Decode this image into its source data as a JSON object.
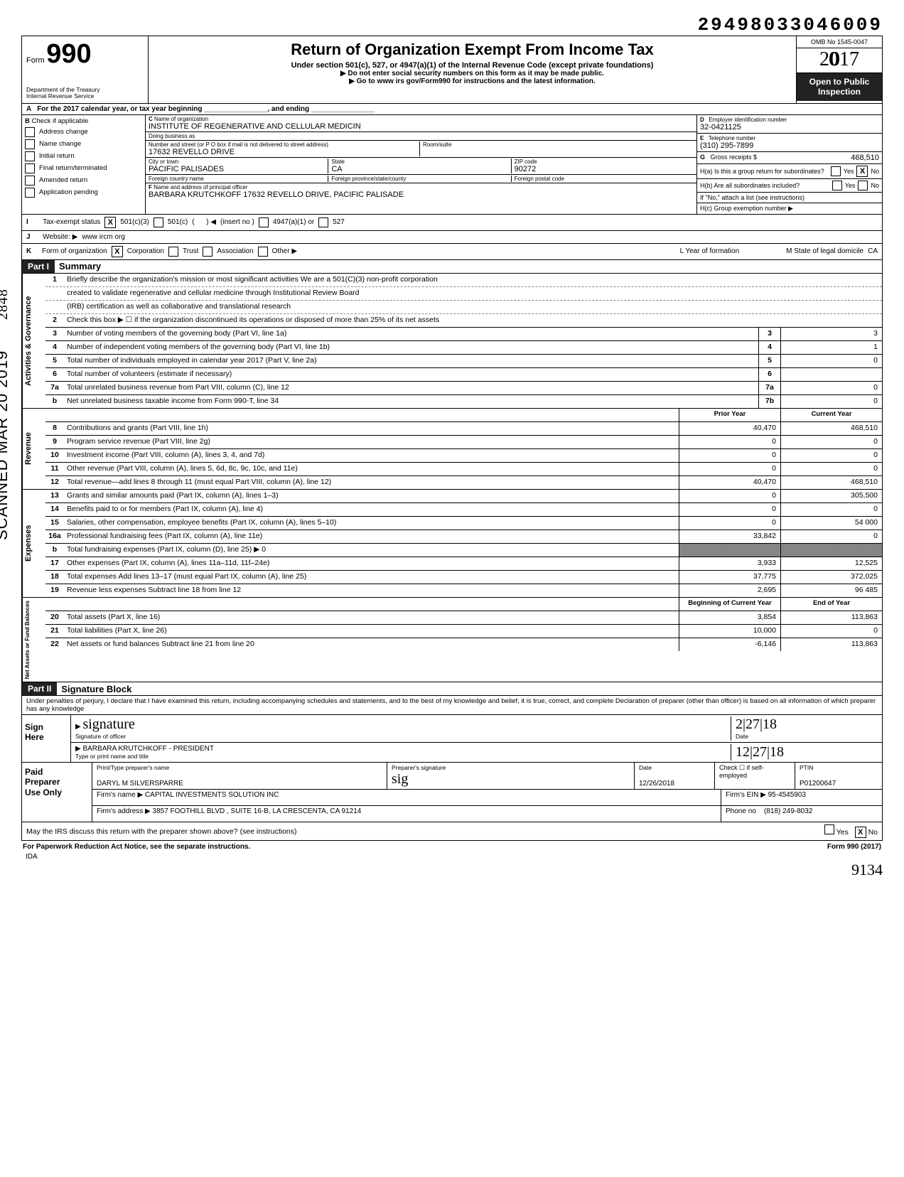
{
  "top_id": "29498033046009",
  "form": {
    "word": "Form",
    "number": "990",
    "dept1": "Department of the Treasury",
    "dept2": "Internal Revenue Service",
    "title": "Return of Organization Exempt From Income Tax",
    "sub1": "Under section 501(c), 527, or 4947(a)(1) of the Internal Revenue Code (except private foundations)",
    "sub2": "Do not enter social security numbers on this form as it may be made public.",
    "sub3": "Go to www irs gov/Form990 for instructions and the latest information.",
    "omb": "OMB No 1545-0047",
    "year": "2017",
    "open1": "Open to Public",
    "open2": "Inspection"
  },
  "rowA": "For the 2017 calendar year, or tax year beginning ________________, and ending ________________",
  "colB": {
    "hdr": "Check if applicable",
    "items": [
      "Address change",
      "Name change",
      "Initial return",
      "Final return/terminated",
      "Amended return",
      "Application pending"
    ]
  },
  "colC": {
    "name_lbl": "Name of organization",
    "name": "INSTITUTE OF REGENERATIVE AND CELLULAR MEDICIN",
    "dba_lbl": "Doing business as",
    "dba": "",
    "street_lbl": "Number and street (or P O box if mail is not delivered to street address)",
    "room_lbl": "Room/suite",
    "street": "17632 REVELLO DRIVE",
    "city_lbl": "City or town",
    "state_lbl": "State",
    "zip_lbl": "ZIP code",
    "city": "PACIFIC PALISADES",
    "state": "CA",
    "zip": "90272",
    "fcountry_lbl": "Foreign country name",
    "fprov_lbl": "Foreign province/state/county",
    "fpost_lbl": "Foreign postal code",
    "officer_lbl": "Name and address of principal officer",
    "officer": "BARBARA KRUTCHKOFF 17632 REVELLO DRIVE, PACIFIC PALISADE"
  },
  "colD": {
    "ein_lbl": "Employer identification number",
    "ein": "32-0421125",
    "tel_lbl": "Telephone number",
    "tel": "(310) 295-7899",
    "gross_lbl": "Gross receipts $",
    "gross": "468,510",
    "ha_lbl": "H(a) Is this a group return for subordinates?",
    "hb_lbl": "H(b) Are all subordinates included?",
    "h_note": "If \"No,\" attach a list (see instructions)",
    "hc_lbl": "H(c) Group exemption number ▶",
    "yes": "Yes",
    "no": "No"
  },
  "lineI": {
    "label": "Tax-exempt status",
    "opt1": "501(c)(3)",
    "opt2": "501(c)",
    "opt2b": "(insert no )",
    "opt3": "4947(a)(1) or",
    "opt4": "527"
  },
  "lineJ": {
    "label": "Website: ▶",
    "val": "www ircm org"
  },
  "lineK": {
    "label": "Form of organization",
    "opts": [
      "Corporation",
      "Trust",
      "Association",
      "Other ▶"
    ],
    "year_lbl": "L Year of formation",
    "state_lbl": "M State of legal domicile",
    "state": "CA"
  },
  "part1": {
    "hdr": "Part I",
    "title": "Summary"
  },
  "summary": {
    "s1_label": "Activities & Governance",
    "s1": [
      {
        "n": "1",
        "t": "Briefly describe the organization's mission or most significant activities      We are a 501(C)(3) non-profit corporation"
      },
      {
        "n": "",
        "t": "created to validate regenerative and cellular medicine through Institutional Review Board"
      },
      {
        "n": "",
        "t": "(IRB) certification as well as collaborative and translational research"
      },
      {
        "n": "2",
        "t": "Check this box  ▶ ☐  if the organization discontinued its operations or disposed of more than 25% of its net assets"
      },
      {
        "n": "3",
        "t": "Number of voting members of the governing body (Part VI, line 1a)",
        "k": "3",
        "v": "3"
      },
      {
        "n": "4",
        "t": "Number of independent voting members of the governing body (Part VI, line 1b)",
        "k": "4",
        "v": "1"
      },
      {
        "n": "5",
        "t": "Total number of individuals employed in calendar year 2017 (Part V, line 2a)",
        "k": "5",
        "v": "0"
      },
      {
        "n": "6",
        "t": "Total number of volunteers (estimate if necessary)",
        "k": "6",
        "v": ""
      },
      {
        "n": "7a",
        "t": "Total unrelated business revenue from Part VIII, column (C), line 12",
        "k": "7a",
        "v": "0"
      },
      {
        "n": "b",
        "t": "Net unrelated business taxable income from Form 990-T, line 34",
        "k": "7b",
        "v": "0"
      }
    ],
    "s2_label": "Revenue",
    "s2_hdr1": "Prior Year",
    "s2_hdr2": "Current Year",
    "s2": [
      {
        "n": "8",
        "t": "Contributions and grants (Part VIII, line 1h)",
        "p": "40,470",
        "c": "468,510"
      },
      {
        "n": "9",
        "t": "Program service revenue (Part VIII, line 2g)",
        "p": "0",
        "c": "0"
      },
      {
        "n": "10",
        "t": "Investment income (Part VIII, column (A), lines 3, 4, and 7d)",
        "p": "0",
        "c": "0"
      },
      {
        "n": "11",
        "t": "Other revenue (Part VIII, column (A), lines 5, 6d, 8c, 9c, 10c, and 11e)",
        "p": "0",
        "c": "0"
      },
      {
        "n": "12",
        "t": "Total revenue—add lines 8 through 11 (must equal Part VIII, column (A), line 12)",
        "p": "40,470",
        "c": "468,510"
      }
    ],
    "s3_label": "Expenses",
    "s3": [
      {
        "n": "13",
        "t": "Grants and similar amounts paid (Part IX, column (A), lines 1–3)",
        "p": "0",
        "c": "305,500"
      },
      {
        "n": "14",
        "t": "Benefits paid to or for members (Part IX, column (A), line 4)",
        "p": "0",
        "c": "0"
      },
      {
        "n": "15",
        "t": "Salaries, other compensation, employee benefits (Part IX, column (A), lines 5–10)",
        "p": "0",
        "c": "54 000"
      },
      {
        "n": "16a",
        "t": "Professional fundraising fees (Part IX, column (A), line 11e)",
        "p": "33,842",
        "c": "0"
      },
      {
        "n": "b",
        "t": "Total fundraising expenses (Part IX, column (D), line 25)  ▶            0",
        "p": "GREY",
        "c": "GREY"
      },
      {
        "n": "17",
        "t": "Other expenses (Part IX, column (A), lines 11a–11d, 11f–24e)",
        "p": "3,933",
        "c": "12,525"
      },
      {
        "n": "18",
        "t": "Total expenses  Add lines 13–17 (must equal Part IX, column (A), line 25)",
        "p": "37,775",
        "c": "372,025"
      },
      {
        "n": "19",
        "t": "Revenue less expenses  Subtract line 18 from line 12",
        "p": "2,695",
        "c": "96 485"
      }
    ],
    "s4_label": "Net Assets or\nFund Balances",
    "s4_hdr1": "Beginning of Current Year",
    "s4_hdr2": "End of Year",
    "s4": [
      {
        "n": "20",
        "t": "Total assets (Part X, line 16)",
        "p": "3,854",
        "c": "113,863"
      },
      {
        "n": "21",
        "t": "Total liabilities (Part X, line 26)",
        "p": "10,000",
        "c": "0"
      },
      {
        "n": "22",
        "t": "Net assets or fund balances  Subtract line 21 from line 20",
        "p": "-6,146",
        "c": "113,863"
      }
    ]
  },
  "part2": {
    "hdr": "Part II",
    "title": "Signature Block"
  },
  "perjury": "Under penalties of perjury, I declare that I have examined this return, including accompanying schedules and statements, and to the best of my knowledge and belief, it is true, correct, and complete  Declaration of preparer (other than officer) is based on all information of which preparer has any knowledge",
  "sign": {
    "here": "Sign\nHere",
    "sig_lbl": "Signature of officer",
    "date_lbl": "Date",
    "date1": "2|27|18",
    "date2": "12|27|18",
    "name": "BARBARA KRUTCHKOFF - PRESIDENT",
    "name_lbl": "Type or print name and title"
  },
  "paid": {
    "hdr": "Paid\nPreparer\nUse Only",
    "pname_lbl": "Print/Type preparer's name",
    "pname": "DARYL M SILVERSPARRE",
    "psig_lbl": "Preparer's signature",
    "date_lbl": "Date",
    "date": "12/26/2018",
    "check_lbl": "Check ☐ if\nself-employed",
    "ptin_lbl": "PTIN",
    "ptin": "P01200647",
    "firm_lbl": "Firm's name   ▶",
    "firm": "CAPITAL INVESTMENTS SOLUTION INC",
    "fein_lbl": "Firm's EIN ▶",
    "fein": "95-4545903",
    "addr_lbl": "Firm's address ▶",
    "addr": "3857 FOOTHILL BLVD , SUITE 16-B, LA CRESCENTA, CA 91214",
    "ph_lbl": "Phone no",
    "ph": "(818) 249-8032"
  },
  "discuss": {
    "q": "May the IRS discuss this return with the preparer shown above? (see instructions)",
    "yes": "Yes",
    "no": "No"
  },
  "foot": {
    "left": "For Paperwork Reduction Act Notice, see the separate instructions.",
    "right": "Form 990 (2017)"
  },
  "ida": "IDA",
  "stamp": "SCANNED MAR 20 2019",
  "handnum": "2848",
  "handright": "9134"
}
